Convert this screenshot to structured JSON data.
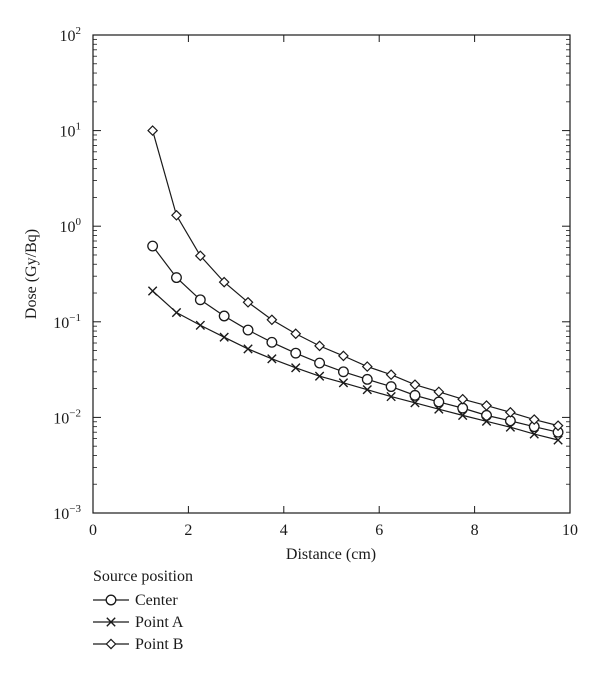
{
  "chart_data": {
    "type": "line",
    "title": "",
    "xlabel": "Distance (cm)",
    "ylabel": "Dose (Gy/Bq)",
    "xlim": [
      0,
      10
    ],
    "ylim": [
      0.001,
      100
    ],
    "yscale": "log",
    "grid": false,
    "x_ticks": [
      0,
      2,
      4,
      6,
      8,
      10
    ],
    "x_tick_labels": [
      "0",
      "2",
      "4",
      "6",
      "8",
      "10"
    ],
    "y_ticks": [
      0.001,
      0.01,
      0.1,
      1,
      10,
      100
    ],
    "y_tick_labels": [
      {
        "base": "10",
        "exp": "−3"
      },
      {
        "base": "10",
        "exp": "−2"
      },
      {
        "base": "10",
        "exp": "−1"
      },
      {
        "base": "10",
        "exp": "0"
      },
      {
        "base": "10",
        "exp": "1"
      },
      {
        "base": "10",
        "exp": "2"
      }
    ],
    "legend_title": "Source position",
    "legend_position": "below",
    "x": [
      1.25,
      1.75,
      2.25,
      2.75,
      3.25,
      3.75,
      4.25,
      4.75,
      5.25,
      5.75,
      6.25,
      6.75,
      7.25,
      7.75,
      8.25,
      8.75,
      9.25,
      9.75
    ],
    "series": [
      {
        "name": "Center",
        "marker": "circle",
        "values": [
          0.62,
          0.29,
          0.17,
          0.115,
          0.082,
          0.061,
          0.047,
          0.037,
          0.03,
          0.025,
          0.021,
          0.017,
          0.0145,
          0.0125,
          0.0105,
          0.0092,
          0.008,
          0.007
        ]
      },
      {
        "name": "Point A",
        "marker": "cross",
        "values": [
          0.21,
          0.125,
          0.092,
          0.069,
          0.052,
          0.041,
          0.033,
          0.027,
          0.023,
          0.0195,
          0.0165,
          0.0142,
          0.0122,
          0.0105,
          0.0091,
          0.0079,
          0.0067,
          0.0058
        ]
      },
      {
        "name": "Point B",
        "marker": "diamond",
        "values": [
          10,
          1.3,
          0.49,
          0.26,
          0.16,
          0.105,
          0.075,
          0.056,
          0.044,
          0.034,
          0.028,
          0.022,
          0.0185,
          0.0155,
          0.0133,
          0.0113,
          0.0095,
          0.0082
        ]
      }
    ]
  }
}
